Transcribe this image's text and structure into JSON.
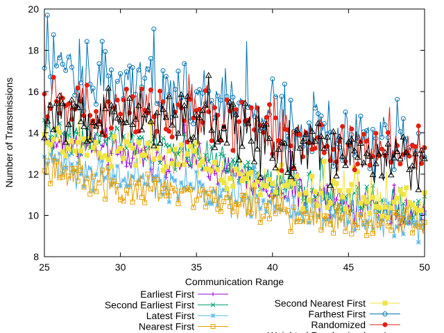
{
  "chart_data": {
    "type": "line",
    "title": "",
    "xlabel": "Communication Range",
    "ylabel": "Number of Transmissions",
    "xlim": [
      25,
      50
    ],
    "ylim": [
      8,
      20
    ],
    "x_ticks": [
      "25",
      "30",
      "35",
      "40",
      "45",
      "50"
    ],
    "y_ticks": [
      "8",
      "10",
      "12",
      "14",
      "16",
      "18",
      "20"
    ],
    "grid": false,
    "legend_position": "bottom, two columns",
    "x_step": 0.1,
    "series": [
      {
        "name": "Earliest First",
        "color": "#9400d3",
        "marker": "plus",
        "approx_trend": [
          [
            25,
            13.6
          ],
          [
            30,
            13.0
          ],
          [
            35,
            12.5
          ],
          [
            40,
            11.2
          ],
          [
            45,
            10.6
          ],
          [
            50,
            10.0
          ]
        ]
      },
      {
        "name": "Second Earliest First",
        "color": "#009e73",
        "marker": "cross",
        "approx_trend": [
          [
            25,
            14.0
          ],
          [
            30,
            13.6
          ],
          [
            35,
            13.0
          ],
          [
            40,
            11.6
          ],
          [
            45,
            10.8
          ],
          [
            50,
            10.2
          ]
        ]
      },
      {
        "name": "Latest First",
        "color": "#56b4e9",
        "marker": "asterisk",
        "approx_trend": [
          [
            25,
            12.6
          ],
          [
            30,
            11.9
          ],
          [
            35,
            11.3
          ],
          [
            40,
            10.5
          ],
          [
            45,
            10.0
          ],
          [
            50,
            9.6
          ]
        ]
      },
      {
        "name": "Nearest First",
        "color": "#e69f00",
        "marker": "open-square",
        "approx_trend": [
          [
            25,
            12.3
          ],
          [
            30,
            11.5
          ],
          [
            35,
            10.9
          ],
          [
            40,
            10.2
          ],
          [
            45,
            9.8
          ],
          [
            50,
            9.5
          ]
        ]
      },
      {
        "name": "Second Nearest First",
        "color": "#f0e442",
        "marker": "filled-square",
        "approx_trend": [
          [
            25,
            13.6
          ],
          [
            30,
            13.1
          ],
          [
            35,
            12.6
          ],
          [
            40,
            11.4
          ],
          [
            45,
            10.8
          ],
          [
            50,
            10.4
          ]
        ]
      },
      {
        "name": "Farthest First",
        "color": "#0072b2",
        "marker": "open-circle",
        "approx_trend": [
          [
            25,
            17.2
          ],
          [
            30,
            16.6
          ],
          [
            35,
            16.0
          ],
          [
            40,
            14.8
          ],
          [
            45,
            13.8
          ],
          [
            50,
            13.2
          ]
        ]
      },
      {
        "name": "Randomized",
        "color": "#e51e10",
        "marker": "filled-circle",
        "approx_trend": [
          [
            25,
            15.2
          ],
          [
            30,
            15.0
          ],
          [
            35,
            14.9
          ],
          [
            40,
            14.0
          ],
          [
            45,
            13.3
          ],
          [
            50,
            12.9
          ]
        ]
      },
      {
        "name": "Weighted Randomized",
        "color": "#000000",
        "marker": "open-triangle",
        "approx_trend": [
          [
            25,
            15.0
          ],
          [
            30,
            14.8
          ],
          [
            35,
            14.6
          ],
          [
            40,
            13.6
          ],
          [
            45,
            13.0
          ],
          [
            50,
            12.6
          ]
        ]
      }
    ]
  }
}
